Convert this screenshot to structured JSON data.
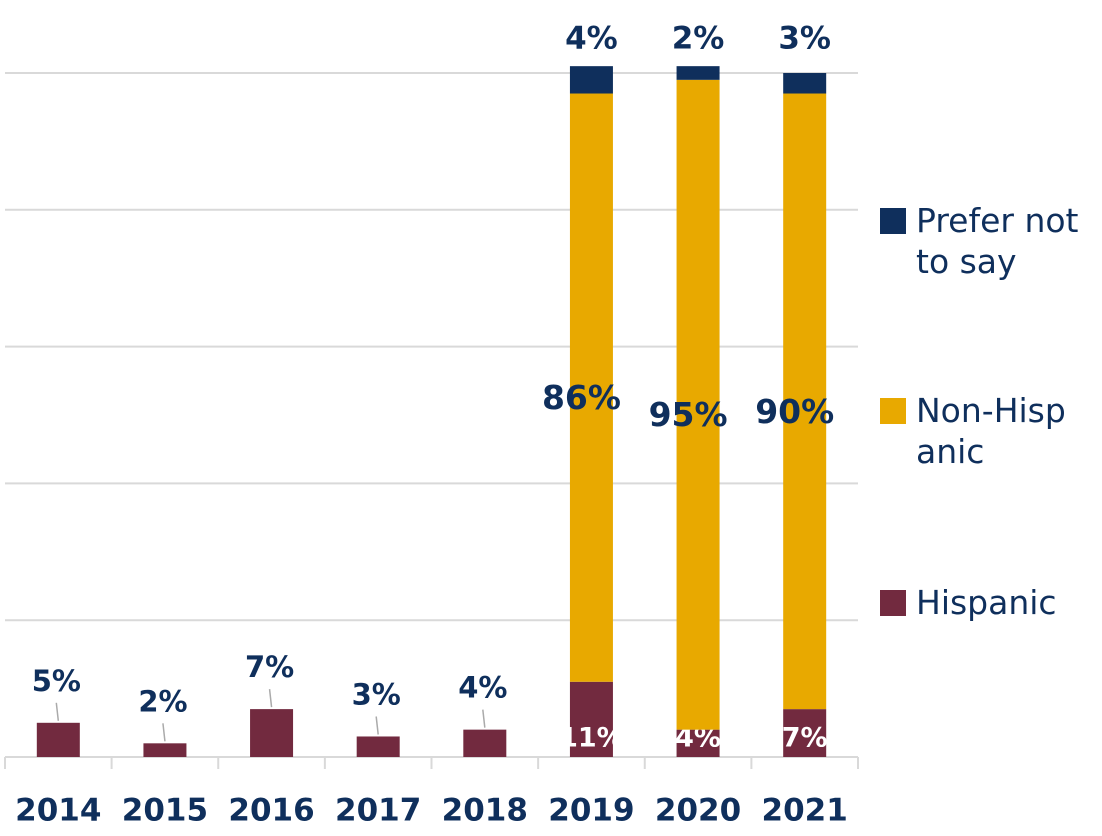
{
  "chart_data": {
    "type": "stacked_bar",
    "categories": [
      "2014",
      "2015",
      "2016",
      "2017",
      "2018",
      "2019",
      "2020",
      "2021"
    ],
    "series": [
      {
        "name": "Hispanic",
        "color": "#722a3f",
        "values": [
          5,
          2,
          7,
          3,
          4,
          11,
          4,
          7
        ],
        "value_labels": [
          "5%",
          "2%",
          "7%",
          "3%",
          "4%",
          "11%",
          "4%",
          "7%"
        ]
      },
      {
        "name": "Non-Hispanic",
        "color": "#e8a900",
        "values": [
          null,
          null,
          null,
          null,
          null,
          86,
          95,
          90
        ],
        "value_labels": [
          null,
          null,
          null,
          null,
          null,
          "86%",
          "95%",
          "90%"
        ]
      },
      {
        "name": "Prefer not to say",
        "color": "#0f2f5c",
        "values": [
          null,
          null,
          null,
          null,
          null,
          4,
          2,
          3
        ],
        "value_labels": [
          null,
          null,
          null,
          null,
          null,
          "4%",
          "2%",
          "3%"
        ]
      }
    ],
    "ylim": [
      0,
      100
    ],
    "yticks": [
      0,
      20,
      40,
      60,
      80,
      100
    ],
    "grid": true
  }
}
